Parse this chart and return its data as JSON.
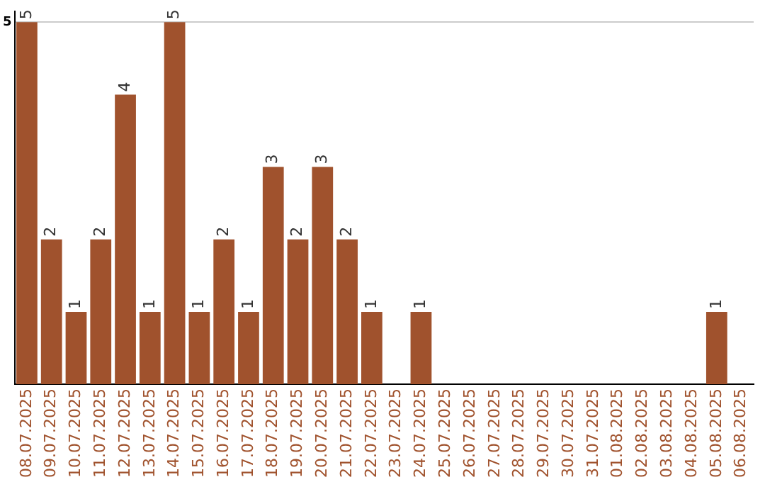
{
  "chart_data": {
    "type": "bar",
    "categories": [
      "08.07.2025",
      "09.07.2025",
      "10.07.2025",
      "11.07.2025",
      "12.07.2025",
      "13.07.2025",
      "14.07.2025",
      "15.07.2025",
      "16.07.2025",
      "17.07.2025",
      "18.07.2025",
      "19.07.2025",
      "20.07.2025",
      "21.07.2025",
      "22.07.2025",
      "23.07.2025",
      "24.07.2025",
      "25.07.2025",
      "26.07.2025",
      "27.07.2025",
      "28.07.2025",
      "29.07.2025",
      "30.07.2025",
      "31.07.2025",
      "01.08.2025",
      "02.08.2025",
      "03.08.2025",
      "04.08.2025",
      "05.08.2025",
      "06.08.2025"
    ],
    "values": [
      5,
      2,
      1,
      2,
      4,
      1,
      5,
      1,
      2,
      1,
      3,
      2,
      3,
      2,
      1,
      null,
      1,
      null,
      null,
      null,
      null,
      null,
      null,
      null,
      null,
      null,
      null,
      null,
      1,
      null
    ],
    "color": "#a0522d",
    "ylim": [
      0,
      5.15
    ],
    "yticks": [
      5
    ],
    "grid": "y",
    "data_labels": true,
    "legend": false
  }
}
